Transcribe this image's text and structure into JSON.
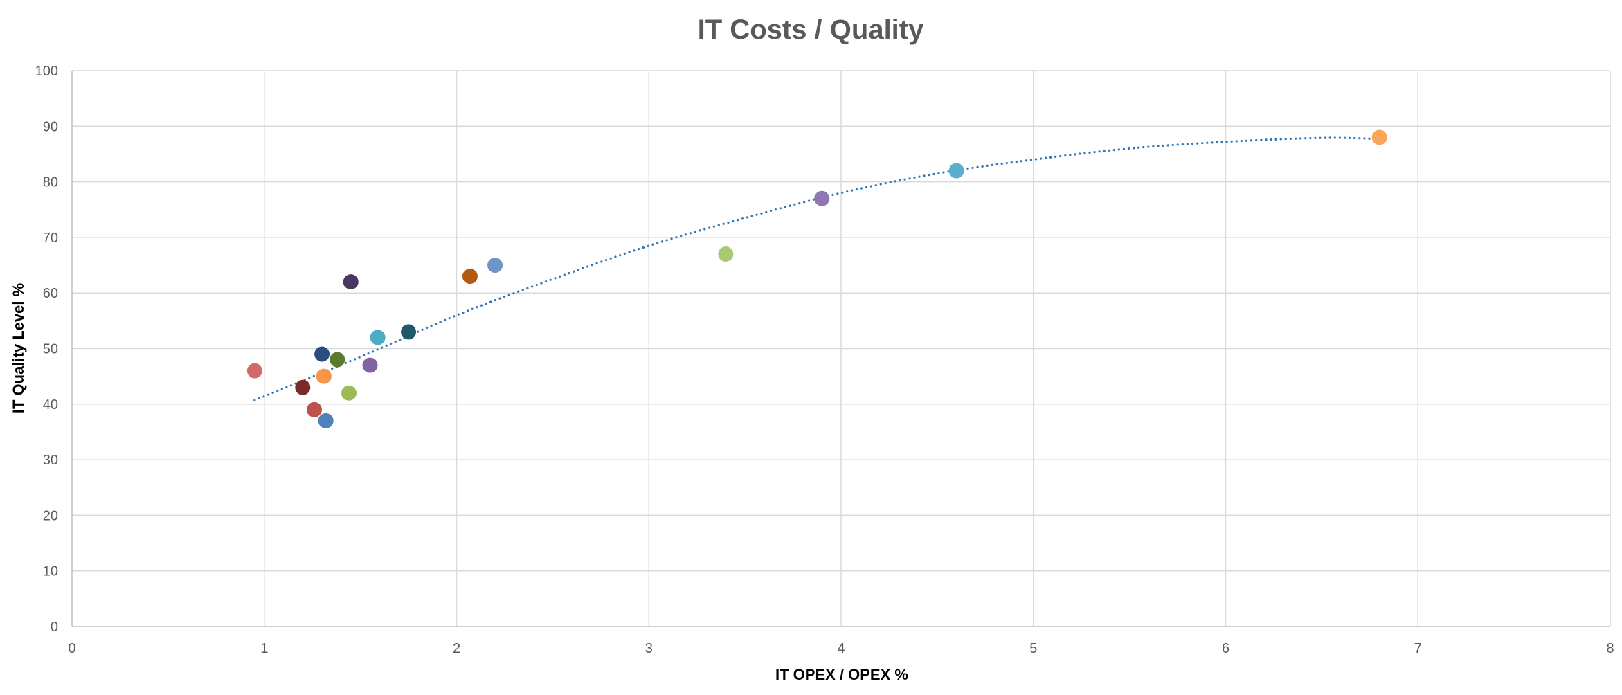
{
  "chart_data": {
    "type": "scatter",
    "title": "IT Costs / Quality",
    "xlabel": "IT OPEX / OPEX %",
    "ylabel": "IT Quality Level %",
    "xlim": [
      0,
      8
    ],
    "ylim": [
      0,
      100
    ],
    "x_ticks": [
      0,
      1,
      2,
      3,
      4,
      5,
      6,
      7,
      8
    ],
    "y_ticks": [
      0,
      10,
      20,
      30,
      40,
      50,
      60,
      70,
      80,
      90,
      100
    ],
    "grid": true,
    "legend": "none",
    "points": [
      {
        "x": 0.95,
        "y": 46,
        "color": "#d06b6b"
      },
      {
        "x": 1.2,
        "y": 43,
        "color": "#7b2a2a"
      },
      {
        "x": 1.26,
        "y": 39,
        "color": "#c0504d"
      },
      {
        "x": 1.3,
        "y": 49,
        "color": "#2b4c7e"
      },
      {
        "x": 1.31,
        "y": 45,
        "color": "#f79646"
      },
      {
        "x": 1.32,
        "y": 37,
        "color": "#4f81bd"
      },
      {
        "x": 1.38,
        "y": 48,
        "color": "#5a7a32"
      },
      {
        "x": 1.44,
        "y": 42,
        "color": "#9bbb59"
      },
      {
        "x": 1.45,
        "y": 62,
        "color": "#4a3563"
      },
      {
        "x": 1.55,
        "y": 47,
        "color": "#8064a2"
      },
      {
        "x": 1.59,
        "y": 52,
        "color": "#4bacc6"
      },
      {
        "x": 1.75,
        "y": 53,
        "color": "#215968"
      },
      {
        "x": 2.07,
        "y": 63,
        "color": "#b35a10"
      },
      {
        "x": 2.2,
        "y": 65,
        "color": "#6f94c8"
      },
      {
        "x": 3.4,
        "y": 67,
        "color": "#a9c872"
      },
      {
        "x": 3.9,
        "y": 77,
        "color": "#8f77b5"
      },
      {
        "x": 4.6,
        "y": 82,
        "color": "#5aaecf"
      },
      {
        "x": 6.8,
        "y": 88,
        "color": "#f9a65a"
      }
    ],
    "trendline": {
      "type": "polynomial",
      "style": "dotted",
      "color": "#2e75b6",
      "x_range": [
        0.95,
        6.8
      ],
      "samples": [
        {
          "x": 0.95,
          "y": 40.7
        },
        {
          "x": 1.5,
          "y": 48.5
        },
        {
          "x": 2,
          "y": 56
        },
        {
          "x": 2.5,
          "y": 62.5
        },
        {
          "x": 3,
          "y": 68.5
        },
        {
          "x": 3.5,
          "y": 73.5
        },
        {
          "x": 4,
          "y": 78
        },
        {
          "x": 4.5,
          "y": 81.5
        },
        {
          "x": 5,
          "y": 84
        },
        {
          "x": 5.5,
          "y": 86
        },
        {
          "x": 6,
          "y": 87.2
        },
        {
          "x": 6.5,
          "y": 87.9
        },
        {
          "x": 6.8,
          "y": 87.7
        }
      ]
    }
  }
}
